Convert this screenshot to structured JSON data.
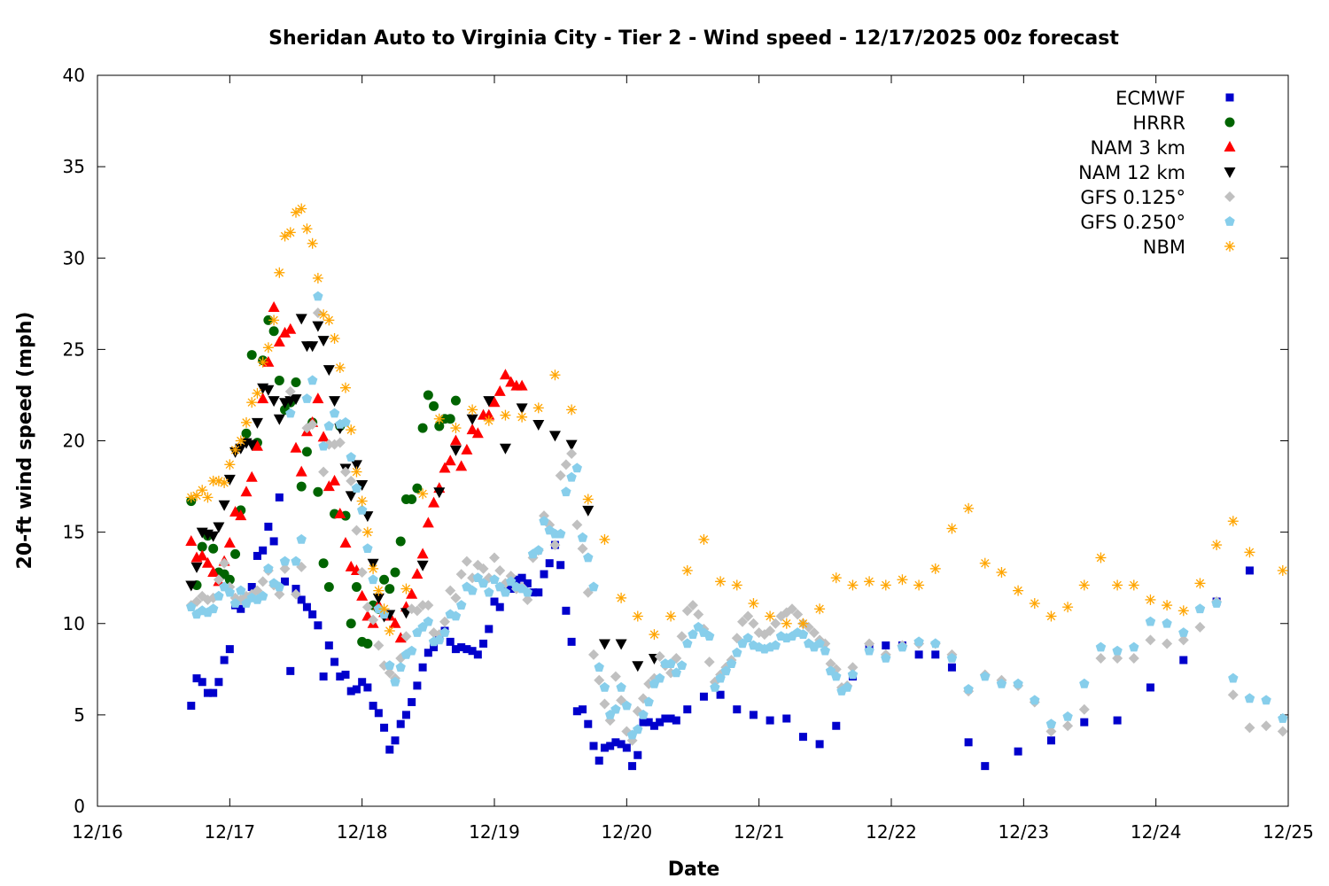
{
  "chart_data": {
    "type": "scatter",
    "title": "Sheridan Auto to Virginia City - Tier 2 - Wind speed - 12/17/2025 00z forecast",
    "xlabel": "Date",
    "ylabel": "20-ft wind speed (mph)",
    "x_units": "hours since 12/16 00:00",
    "xlim": [
      0,
      216
    ],
    "ylim": [
      0,
      40
    ],
    "yticks": [
      0,
      5,
      10,
      15,
      20,
      25,
      30,
      35,
      40
    ],
    "xticks": [
      {
        "x": 0,
        "label": "12/16"
      },
      {
        "x": 24,
        "label": "12/17"
      },
      {
        "x": 48,
        "label": "12/18"
      },
      {
        "x": 72,
        "label": "12/19"
      },
      {
        "x": 96,
        "label": "12/20"
      },
      {
        "x": 120,
        "label": "12/21"
      },
      {
        "x": 144,
        "label": "12/22"
      },
      {
        "x": 168,
        "label": "12/23"
      },
      {
        "x": 192,
        "label": "12/24"
      },
      {
        "x": 216,
        "label": "12/25"
      }
    ],
    "grid": false,
    "legend_position": "top-right",
    "series": [
      {
        "name": "ECMWF",
        "marker": "square",
        "color": "#0000cc",
        "segments": [
          {
            "start": 17,
            "step": 1,
            "values": [
              5.5,
              7.0,
              6.8,
              6.2,
              6.2,
              6.8,
              8.0,
              8.6,
              11.0,
              10.8,
              11.4,
              12.0,
              13.7,
              14.0,
              15.3,
              14.5,
              16.9,
              12.3,
              7.4,
              11.9,
              11.3,
              10.9,
              10.5,
              9.9,
              7.1,
              8.8,
              7.9,
              7.1,
              7.2,
              6.3,
              6.4,
              6.8,
              6.5,
              5.5,
              5.1,
              4.3,
              3.1,
              3.6,
              4.5,
              5.0,
              5.7,
              6.6,
              7.6,
              8.4,
              8.7,
              9.2,
              9.6,
              9.0,
              8.6,
              8.7,
              8.6,
              8.5,
              8.3,
              8.9,
              9.7,
              11.2,
              10.9,
              11.8,
              11.9,
              12.4,
              12.5,
              12.2,
              11.7,
              11.7,
              12.7,
              13.3,
              14.3,
              13.2,
              10.7,
              9.0,
              5.2,
              5.3,
              4.5,
              3.3,
              2.5,
              3.2,
              3.3,
              3.5,
              3.4,
              3.2,
              2.2,
              2.8,
              4.6,
              4.6,
              4.4,
              4.6,
              4.8,
              4.8,
              4.7,
              null,
              5.3
            ]
          },
          {
            "start": 110,
            "step": 3,
            "values": [
              6.0,
              6.1,
              5.3,
              5.0,
              4.7,
              4.8,
              3.8,
              3.4,
              4.4,
              7.1,
              8.7,
              8.8,
              8.8,
              8.3,
              8.3,
              7.6,
              3.5,
              2.2
            ]
          },
          {
            "start": 167,
            "step": 6,
            "values": [
              3.0,
              3.6,
              4.6,
              4.7,
              6.5,
              8.0,
              11.2,
              12.9
            ]
          }
        ]
      },
      {
        "name": "HRRR",
        "marker": "circle",
        "color": "#006400",
        "segments": [
          {
            "start": 17,
            "step": 1,
            "values": [
              16.7,
              12.1,
              14.2,
              14.8,
              14.1,
              12.8,
              12.7,
              12.4,
              13.8,
              16.2,
              20.4,
              24.7,
              19.9,
              24.4,
              26.6,
              26.0,
              23.3,
              21.7,
              22.1,
              23.2,
              17.5,
              19.4,
              21.0,
              17.2,
              13.3,
              12.0,
              16.0,
              20.8,
              15.9,
              10.0,
              12.0,
              9.0,
              8.9,
              11.0,
              10.8,
              12.4,
              11.9,
              12.8,
              14.5,
              16.8,
              16.8,
              17.4,
              20.7,
              22.5,
              21.9,
              20.8,
              21.2,
              21.2,
              22.2
            ]
          }
        ]
      },
      {
        "name": "NAM 3 km",
        "marker": "triangle-up",
        "color": "#ff0000",
        "segments": [
          {
            "start": 17,
            "step": 1,
            "values": [
              14.5,
              13.6,
              13.7,
              13.3,
              12.8,
              12.3,
              13.4,
              14.4,
              16.1,
              15.9,
              17.2,
              18.0,
              19.7,
              22.3,
              24.3,
              27.3,
              25.4,
              25.9,
              26.1,
              19.6,
              18.3,
              20.5,
              21.0,
              22.3,
              20.2,
              17.5,
              17.8,
              16.0,
              14.4,
              13.1,
              12.9,
              11.5,
              10.4,
              10.0,
              11.0,
              10.6,
              10.4,
              10.0,
              9.2,
              10.9,
              11.6,
              12.7,
              13.8,
              15.5,
              16.6,
              17.4,
              18.5,
              18.9,
              20.0,
              18.6,
              19.5,
              20.6,
              20.4,
              21.4,
              21.4,
              22.1,
              22.7,
              23.6,
              23.2,
              23.0,
              23.0
            ]
          }
        ]
      },
      {
        "name": "NAM 12 km",
        "marker": "triangle-down",
        "color": "#000000",
        "segments": [
          {
            "start": 17,
            "step": 1,
            "values": [
              12.1,
              13.1,
              15.0,
              14.9,
              14.8,
              15.3,
              16.5,
              17.9,
              19.4,
              19.6,
              19.9,
              19.8,
              21.0,
              22.9,
              22.8,
              22.2,
              21.2,
              22.1,
              22.2,
              22.3,
              26.7,
              25.2,
              25.2,
              26.3,
              25.5,
              23.9,
              22.2,
              20.7,
              18.5,
              17.0,
              18.7,
              17.6,
              15.9,
              13.3,
              11.4,
              10.4,
              10.5
            ]
          },
          {
            "start": 56,
            "step": 3,
            "values": [
              10.6,
              13.2,
              17.2,
              19.5,
              21.2,
              22.2,
              19.6,
              21.8,
              20.9,
              20.3,
              19.8,
              16.2,
              8.9,
              8.9,
              7.7,
              8.1
            ]
          }
        ]
      },
      {
        "name": "GFS 0.125°",
        "marker": "diamond",
        "color": "#c0c0c0",
        "segments": [
          {
            "start": 17,
            "step": 1,
            "values": [
              11.0,
              11.2,
              11.5,
              11.3,
              11.4,
              12.4,
              13.3,
              12.0,
              11.4,
              11.3,
              11.5,
              11.6,
              11.8,
              12.3,
              12.9,
              12.1,
              11.6,
              13.0,
              22.7,
              11.6,
              13.1,
              20.7,
              20.9,
              27.0,
              18.3,
              19.8,
              19.8,
              19.9,
              18.3,
              17.8,
              15.1,
              12.8,
              10.9,
              10.2,
              8.8,
              7.7,
              7.3,
              7.0,
              8.1,
              9.3,
              10.8,
              10.7,
              11.0,
              11.0,
              9.5,
              9.4,
              10.1,
              11.8,
              11.4,
              12.7,
              13.4,
              12.5,
              13.2,
              13.0,
              12.5,
              13.6,
              12.9,
              12.2,
              12.6,
              11.9,
              12.0,
              11.3,
              13.6,
              14.0,
              15.9,
              15.4,
              14.3,
              18.1,
              18.7,
              19.3,
              15.4,
              14.1,
              11.7,
              8.3,
              6.9,
              5.6,
              4.7,
              7.1,
              5.8,
              4.1,
              3.6,
              5.2,
              5.9,
              6.7,
              7.0,
              8.2,
              7.7,
              7.3,
              8.1,
              9.3,
              10.7,
              11.0,
              10.5,
              9.7,
              7.9,
              6.8,
              7.2,
              7.6,
              8.0,
              9.2,
              10.1,
              10.4,
              10.0,
              9.5,
              9.4,
              9.6,
              10.0,
              10.4,
              10.6,
              10.8,
              10.5,
              10.0,
              9.8,
              9.5,
              9.1,
              8.9,
              7.8,
              7.5,
              6.5,
              6.6,
              7.6
            ]
          },
          {
            "start": 140,
            "step": 3,
            "values": [
              8.9,
              8.3,
              8.8,
              8.9,
              8.9,
              8.3,
              6.3,
              7.2,
              6.9,
              6.6,
              5.7,
              4.1,
              4.4,
              5.3,
              8.1,
              8.1,
              8.1,
              9.1,
              8.9,
              9.1,
              9.8,
              11.2,
              6.1,
              4.3,
              4.4,
              4.1
            ]
          }
        ]
      },
      {
        "name": "GFS 0.250°",
        "marker": "pentagon",
        "color": "#87ceeb",
        "segments": [
          {
            "start": 17,
            "step": 1,
            "values": [
              10.9,
              10.5,
              10.7,
              10.6,
              10.8,
              11.5,
              12.0,
              11.7,
              11.1,
              11.8,
              11.1,
              11.4,
              11.3,
              11.5,
              13.0,
              12.2,
              12.0,
              13.4,
              21.5,
              13.4,
              14.6,
              22.3,
              23.3,
              27.9,
              19.7,
              20.8,
              21.5,
              20.9,
              21.0,
              19.1,
              17.4,
              16.2,
              14.1,
              12.4,
              10.8,
              10.5,
              7.7,
              6.8,
              7.6,
              8.3,
              8.5,
              9.5,
              9.8,
              10.1,
              9.0,
              9.1,
              9.5,
              10.5,
              10.4,
              11.0,
              12.0,
              11.8,
              12.5,
              12.2,
              11.7,
              12.4,
              12.0,
              11.7,
              12.3,
              12.0,
              11.9,
              11.7,
              13.8,
              14.0,
              15.6,
              15.1,
              14.9,
              14.9,
              17.2,
              18.0,
              18.5,
              14.7,
              13.6,
              12.0,
              7.6,
              6.5,
              5.0,
              5.3,
              6.5,
              5.5,
              3.9,
              4.2,
              5.0,
              5.7,
              6.7,
              7.0,
              7.8,
              7.8,
              7.3,
              7.7,
              8.9,
              9.4,
              9.8,
              9.5,
              9.3,
              6.5,
              7.0,
              7.4,
              7.8,
              8.4,
              8.9,
              9.2,
              8.8,
              8.7,
              8.6,
              8.7,
              8.8,
              9.3,
              9.2,
              9.3,
              9.5,
              9.4,
              8.9,
              8.7,
              8.9,
              8.5,
              7.4,
              7.1,
              6.3,
              6.5,
              7.2
            ]
          },
          {
            "start": 140,
            "step": 3,
            "values": [
              8.5,
              8.1,
              8.7,
              9.0,
              8.9,
              8.1,
              6.4,
              7.1,
              6.7,
              6.7,
              5.8,
              4.5,
              4.9,
              6.7,
              8.7,
              8.5,
              8.7,
              10.1,
              10.0,
              9.5,
              10.8,
              11.1,
              7.0,
              5.9,
              5.8,
              4.8
            ]
          }
        ]
      },
      {
        "name": "NBM",
        "marker": "asterisk",
        "color": "#ffa500",
        "segments": [
          {
            "start": 17,
            "step": 1,
            "values": [
              16.9,
              17.0,
              17.3,
              16.9,
              17.8,
              17.8,
              17.7,
              18.7,
              19.5,
              20.0,
              21.0,
              22.1,
              22.6,
              24.3,
              25.1,
              26.6,
              29.2,
              31.2,
              31.4,
              32.5,
              32.7,
              31.6,
              30.8,
              28.9,
              26.9,
              26.6,
              25.6,
              24.0,
              22.9,
              20.6,
              18.3,
              16.7,
              15.0,
              13.0,
              11.8,
              10.8,
              9.6
            ]
          },
          {
            "start": 56,
            "step": 3,
            "values": [
              11.9,
              17.1,
              21.2,
              20.7,
              21.7,
              21.1,
              21.4,
              21.3,
              21.8,
              23.6,
              21.7,
              16.8,
              14.6,
              11.4,
              10.4,
              9.4,
              10.4,
              12.9,
              14.6,
              12.3,
              12.1,
              11.1,
              10.4,
              10.0,
              10.0,
              10.8,
              12.5,
              12.1,
              12.3,
              12.1,
              12.4,
              12.1,
              13.0,
              15.2,
              16.3,
              13.3,
              12.8,
              11.8,
              11.1,
              10.4,
              10.9,
              12.1,
              13.6,
              12.1,
              12.1,
              11.3,
              11.0,
              10.7,
              12.2,
              14.3,
              15.6,
              13.9,
              null,
              12.9
            ]
          }
        ]
      }
    ]
  }
}
